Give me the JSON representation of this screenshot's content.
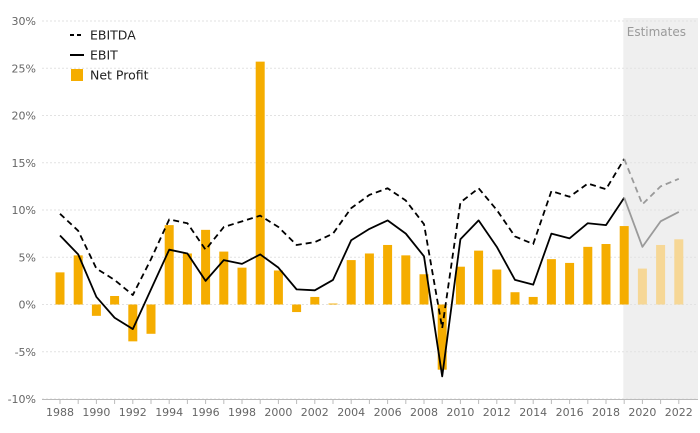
{
  "chart_data": {
    "type": "bar",
    "title": "",
    "xlabel": "",
    "ylabel": "",
    "ylim": [
      -10,
      30
    ],
    "yticks": [
      30,
      25,
      20,
      15,
      10,
      5,
      0,
      -5,
      -10
    ],
    "ytick_format": "%",
    "grid": true,
    "legend_position": "top-left",
    "estimates_label": "Estimates",
    "estimates_from_year": 2020,
    "x": [
      1988,
      1989,
      1990,
      1991,
      1992,
      1993,
      1994,
      1995,
      1996,
      1997,
      1998,
      1999,
      2000,
      2001,
      2002,
      2003,
      2004,
      2005,
      2006,
      2007,
      2008,
      2009,
      2010,
      2011,
      2012,
      2013,
      2014,
      2015,
      2016,
      2017,
      2018,
      2019,
      2020,
      2021,
      2022
    ],
    "xtick_labels": [
      "1988",
      "1990",
      "1992",
      "1994",
      "1996",
      "1998",
      "2000",
      "2002",
      "2004",
      "2006",
      "2008",
      "2010",
      "2012",
      "2014",
      "2016",
      "2018",
      "2020",
      "2022"
    ],
    "series": [
      {
        "name": "EBITDA",
        "kind": "line",
        "style": "dashed",
        "color": "#000000",
        "estimate_color": "#9a9a9a",
        "values": [
          9.6,
          7.8,
          3.8,
          2.6,
          1.0,
          4.8,
          9.0,
          8.6,
          5.8,
          8.2,
          8.8,
          9.4,
          8.2,
          6.3,
          6.6,
          7.5,
          10.2,
          11.6,
          12.3,
          11.0,
          8.5,
          -2.5,
          10.8,
          12.3,
          10.0,
          7.2,
          6.4,
          12.0,
          11.4,
          12.8,
          12.2,
          15.4,
          10.6,
          12.5,
          13.3
        ]
      },
      {
        "name": "EBIT",
        "kind": "line",
        "style": "solid",
        "color": "#000000",
        "estimate_color": "#9a9a9a",
        "values": [
          7.3,
          5.3,
          0.8,
          -1.4,
          -2.6,
          1.6,
          5.8,
          5.4,
          2.5,
          4.7,
          4.3,
          5.3,
          3.9,
          1.6,
          1.5,
          2.6,
          6.8,
          8.0,
          8.9,
          7.5,
          5.1,
          -7.6,
          6.9,
          8.9,
          6.1,
          2.6,
          2.1,
          7.5,
          7.0,
          8.6,
          8.4,
          11.3,
          6.1,
          8.8,
          9.8
        ]
      },
      {
        "name": "Net Profit",
        "kind": "bar",
        "color": "#f5ad00",
        "estimate_color": "#f6d796",
        "values": [
          3.4,
          5.2,
          -1.2,
          0.9,
          -3.9,
          -3.1,
          8.4,
          5.4,
          7.9,
          5.6,
          3.9,
          25.7,
          3.6,
          -0.8,
          0.8,
          0.1,
          4.7,
          5.4,
          6.3,
          5.2,
          3.2,
          -6.9,
          4.0,
          5.7,
          3.7,
          1.3,
          0.8,
          4.8,
          4.4,
          6.1,
          6.4,
          8.3,
          3.8,
          6.3,
          6.9
        ]
      }
    ]
  }
}
